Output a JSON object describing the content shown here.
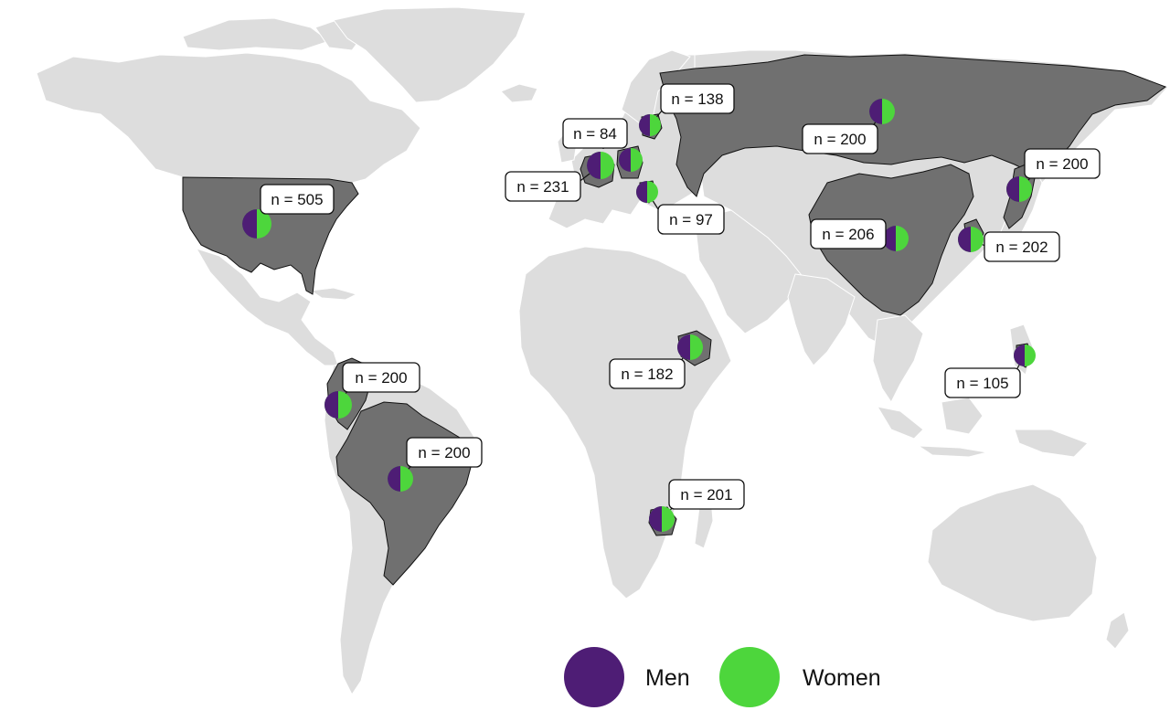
{
  "colors": {
    "ocean": "#ffffff",
    "land": "#dddddd",
    "border": "#ffffff",
    "highlight": "#707070",
    "men": "#4e1d75",
    "women": "#4dd63c"
  },
  "countries": [
    {
      "id": "usa",
      "label": "n = 505",
      "men_share": 0.5
    },
    {
      "id": "colombia",
      "label": "n = 200",
      "men_share": 0.5
    },
    {
      "id": "brazil",
      "label": "n = 200",
      "men_share": 0.5
    },
    {
      "id": "france",
      "label": "n = 231",
      "men_share": 0.5
    },
    {
      "id": "germany",
      "label": "n = 84",
      "men_share": 0.5
    },
    {
      "id": "poland",
      "label": "n = 138",
      "men_share": 0.5
    },
    {
      "id": "serbia",
      "label": "n = 97",
      "men_share": 0.5
    },
    {
      "id": "russia",
      "label": "n = 200",
      "men_share": 0.5
    },
    {
      "id": "china",
      "label": "n = 206",
      "men_share": 0.5
    },
    {
      "id": "korea",
      "label": "n = 202",
      "men_share": 0.5
    },
    {
      "id": "japan",
      "label": "n = 200",
      "men_share": 0.5
    },
    {
      "id": "ethiopia",
      "label": "n = 182",
      "men_share": 0.5
    },
    {
      "id": "zimbabwe",
      "label": "n = 201",
      "men_share": 0.5
    },
    {
      "id": "philippines",
      "label": "n = 105",
      "men_share": 0.5
    }
  ],
  "legend": {
    "men": "Men",
    "women": "Women"
  }
}
